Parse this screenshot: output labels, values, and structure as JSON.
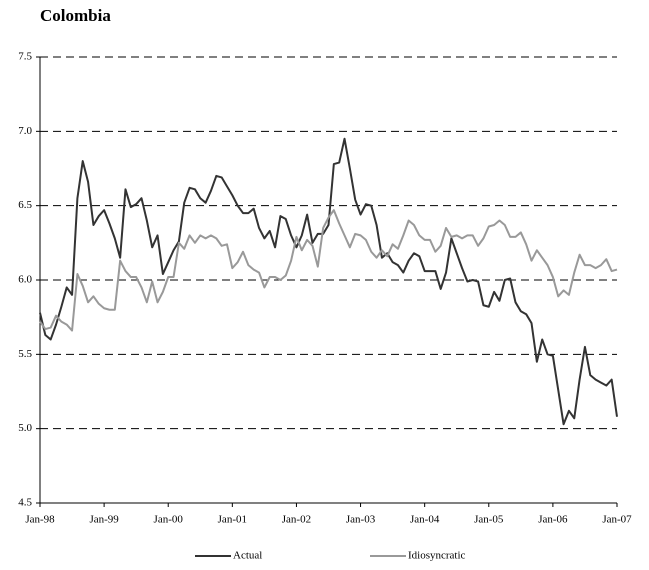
{
  "chart_data": {
    "type": "line",
    "title": "Colombia",
    "categories": [
      "Jan-98",
      null,
      null,
      null,
      null,
      null,
      null,
      null,
      null,
      null,
      null,
      null,
      "Jan-99",
      null,
      null,
      null,
      null,
      null,
      null,
      null,
      null,
      null,
      null,
      null,
      "Jan-00",
      null,
      null,
      null,
      null,
      null,
      null,
      null,
      null,
      null,
      null,
      null,
      "Jan-01",
      null,
      null,
      null,
      null,
      null,
      null,
      null,
      null,
      null,
      null,
      null,
      "Jan-02",
      null,
      null,
      null,
      null,
      null,
      null,
      null,
      null,
      null,
      null,
      null,
      "Jan-03",
      null,
      null,
      null,
      null,
      null,
      null,
      null,
      null,
      null,
      null,
      null,
      "Jan-04",
      null,
      null,
      null,
      null,
      null,
      null,
      null,
      null,
      null,
      null,
      null,
      "Jan-05",
      null,
      null,
      null,
      null,
      null,
      null,
      null,
      null,
      null,
      null,
      null,
      "Jan-06",
      null,
      null,
      null,
      null,
      null,
      null,
      null,
      null,
      null,
      null,
      null,
      "Jan-07"
    ],
    "series": [
      {
        "name": "Actual",
        "color": "#333333",
        "values": [
          5.78,
          5.63,
          5.6,
          5.7,
          5.82,
          5.95,
          5.9,
          6.55,
          6.8,
          6.66,
          6.37,
          6.43,
          6.47,
          6.38,
          6.28,
          6.15,
          6.61,
          6.49,
          6.51,
          6.55,
          6.4,
          6.22,
          6.3,
          6.04,
          6.12,
          6.2,
          6.26,
          6.52,
          6.62,
          6.61,
          6.55,
          6.52,
          6.6,
          6.7,
          6.69,
          6.63,
          6.57,
          6.5,
          6.45,
          6.45,
          6.48,
          6.35,
          6.28,
          6.33,
          6.22,
          6.43,
          6.41,
          6.3,
          6.22,
          6.3,
          6.44,
          6.25,
          6.31,
          6.31,
          6.37,
          6.78,
          6.79,
          6.95,
          6.75,
          6.54,
          6.44,
          6.51,
          6.5,
          6.37,
          6.15,
          6.18,
          6.12,
          6.1,
          6.05,
          6.13,
          6.18,
          6.16,
          6.06,
          6.06,
          6.06,
          5.94,
          6.05,
          6.28,
          6.18,
          6.08,
          5.99,
          6.0,
          5.99,
          5.83,
          5.82,
          5.92,
          5.86,
          6.0,
          6.01,
          5.85,
          5.79,
          5.77,
          5.71,
          5.45,
          5.6,
          5.5,
          5.49,
          5.26,
          5.03,
          5.12,
          5.07,
          5.33,
          5.55,
          5.36,
          5.33,
          5.31,
          5.29,
          5.33,
          5.08
        ]
      },
      {
        "name": "Idiosyncratic",
        "color": "#999999",
        "values": [
          5.72,
          5.67,
          5.68,
          5.76,
          5.72,
          5.7,
          5.66,
          6.04,
          5.96,
          5.85,
          5.89,
          5.84,
          5.81,
          5.8,
          5.8,
          6.13,
          6.06,
          6.02,
          6.02,
          5.95,
          5.85,
          5.99,
          5.85,
          5.92,
          6.02,
          6.02,
          6.25,
          6.21,
          6.3,
          6.25,
          6.3,
          6.28,
          6.3,
          6.28,
          6.23,
          6.24,
          6.08,
          6.12,
          6.19,
          6.1,
          6.07,
          6.05,
          5.95,
          6.02,
          6.02,
          6.0,
          6.03,
          6.13,
          6.29,
          6.2,
          6.27,
          6.23,
          6.09,
          6.35,
          6.42,
          6.47,
          6.38,
          6.3,
          6.22,
          6.31,
          6.3,
          6.27,
          6.19,
          6.15,
          6.2,
          6.16,
          6.24,
          6.21,
          6.3,
          6.4,
          6.37,
          6.3,
          6.27,
          6.27,
          6.19,
          6.23,
          6.35,
          6.29,
          6.3,
          6.28,
          6.3,
          6.3,
          6.23,
          6.28,
          6.36,
          6.37,
          6.4,
          6.37,
          6.29,
          6.29,
          6.32,
          6.24,
          6.13,
          6.2,
          6.15,
          6.1,
          6.02,
          5.89,
          5.93,
          5.9,
          6.05,
          6.17,
          6.1,
          6.1,
          6.08,
          6.1,
          6.14,
          6.06,
          6.07
        ]
      }
    ],
    "ylim": [
      4.5,
      7.5
    ],
    "yticks": [
      4.5,
      {
        "value": 5,
        "label": "5.0"
      },
      5.5,
      {
        "value": 6,
        "label": "6.0"
      },
      6.5,
      {
        "value": 7,
        "label": "7.0"
      },
      7.5
    ],
    "grid": true,
    "legend": "bottom"
  }
}
